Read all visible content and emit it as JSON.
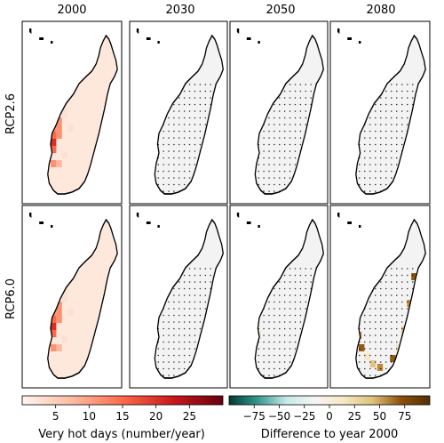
{
  "figure": {
    "columns": [
      "2000",
      "2030",
      "2050",
      "2080"
    ],
    "rows": [
      "RCP2.6",
      "RCP6.0"
    ]
  },
  "colorbars": {
    "left": {
      "label": "Very hot days (number/year)",
      "ticks": [
        "5",
        "10",
        "15",
        "20",
        "25"
      ],
      "tick_values": [
        5,
        10,
        15,
        20,
        25
      ],
      "range": [
        0,
        30
      ],
      "colors": [
        "#fff5f0",
        "#fcbba1",
        "#fb6a4a",
        "#cb181d",
        "#67000d"
      ]
    },
    "right": {
      "label": "Difference to year 2000",
      "ticks": [
        "−75",
        "−50",
        "−25",
        "0",
        "25",
        "50",
        "75"
      ],
      "tick_values": [
        -75,
        -50,
        -25,
        0,
        25,
        50,
        75
      ],
      "range": [
        -100,
        100
      ],
      "colors": [
        "#003c30",
        "#35978f",
        "#c7eae5",
        "#f5f5f5",
        "#f6e8c3",
        "#dfc27d",
        "#8c510a",
        "#543005"
      ]
    }
  },
  "panels": [
    {
      "row": "RCP2.6",
      "col": "2000",
      "kind": "absolute",
      "intensity": 1.0
    },
    {
      "row": "RCP2.6",
      "col": "2030",
      "kind": "difference",
      "intensity": 0.12,
      "stippled": true
    },
    {
      "row": "RCP2.6",
      "col": "2050",
      "kind": "difference",
      "intensity": 0.18,
      "stippled": true
    },
    {
      "row": "RCP2.6",
      "col": "2080",
      "kind": "difference",
      "intensity": 0.18,
      "stippled": true
    },
    {
      "row": "RCP6.0",
      "col": "2000",
      "kind": "absolute",
      "intensity": 1.0
    },
    {
      "row": "RCP6.0",
      "col": "2030",
      "kind": "difference",
      "intensity": 0.18,
      "stippled": true
    },
    {
      "row": "RCP6.0",
      "col": "2050",
      "kind": "difference",
      "intensity": 0.35,
      "stippled": true
    },
    {
      "row": "RCP6.0",
      "col": "2080",
      "kind": "difference",
      "intensity": 0.9,
      "stippled": true
    }
  ]
}
